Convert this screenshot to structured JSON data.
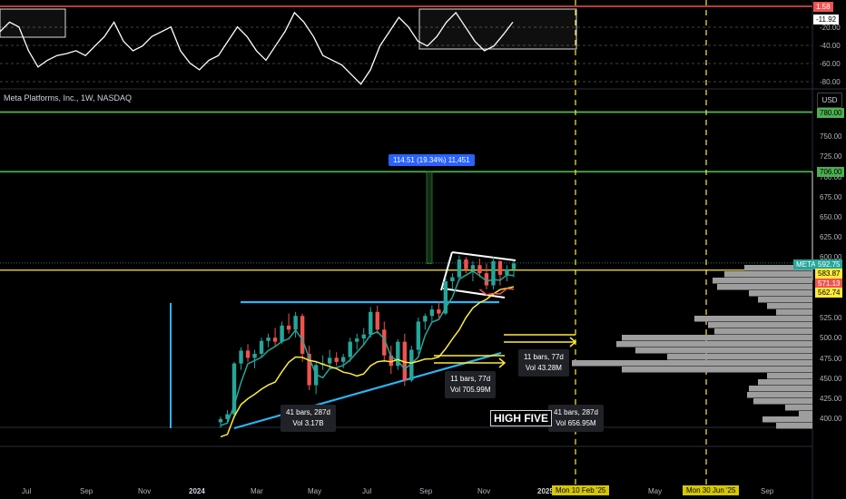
{
  "symbol_title": "Meta Platforms, Inc., 1W, NASDAQ",
  "currency_button": "USD",
  "oscillator": {
    "level_label": "1.58",
    "current_label": "-11.92",
    "ticks": [
      "-20.00",
      "-40.00",
      "-60.00",
      "-80.00"
    ],
    "values": [
      -25,
      -15,
      -20,
      -45,
      -62,
      -55,
      -50,
      -48,
      -45,
      -50,
      -40,
      -30,
      -15,
      -35,
      -45,
      -40,
      -30,
      -25,
      -20,
      -45,
      -58,
      -65,
      -55,
      -50,
      -35,
      -20,
      -30,
      -45,
      -55,
      -40,
      -25,
      -5,
      -15,
      -30,
      -50,
      -55,
      -60,
      -70,
      -80,
      -65,
      -40,
      -25,
      -10,
      -20,
      -35,
      -40,
      -30,
      -15,
      -5,
      -20,
      -35,
      -45,
      -40,
      -28,
      -15
    ]
  },
  "price_axis": {
    "ticks": [
      "750.00",
      "725.00",
      "700.00",
      "675.00",
      "650.00",
      "625.00",
      "600.00",
      "525.00",
      "500.00",
      "475.00",
      "450.00",
      "425.00",
      "400.00"
    ],
    "labels": {
      "target_high": "780.00",
      "target_mid": "706.00",
      "meta_tag": "META",
      "last_price": "592.75",
      "level_yellow": "583.87",
      "level_red": "571.13",
      "level_low": "562.74"
    }
  },
  "measure_label": "114.51 (19.34%) 11,451",
  "ranges": [
    {
      "line1": "41 bars, 287d",
      "line2": "Vol 3.17B"
    },
    {
      "line1": "11 bars, 77d",
      "line2": "Vol 705.99M"
    },
    {
      "line1": "11 bars, 77d",
      "line2": "Vol 43.28M"
    },
    {
      "line1": "41 bars, 287d",
      "line2": "Vol 656.95M"
    }
  ],
  "annotation_text": "HIGH FIVE",
  "time_axis": {
    "labels": [
      "Jul",
      "Sep",
      "Nov",
      "2024",
      "Mar",
      "May",
      "Jul",
      "Sep",
      "Nov",
      "2025",
      "May",
      "Sep"
    ],
    "highlight_1": "Mon 10 Feb '25",
    "highlight_2": "Mon 30 Jun '25"
  },
  "colors": {
    "up": "#26a69a",
    "down": "#ef5350",
    "ma_fast": "#26a69a",
    "ma_slow": "#ffeb3b",
    "trendline": "#29b6f6",
    "target_line": "#4caf50",
    "yellow_level": "#ffeb3b"
  },
  "chart_data": {
    "type": "candlestick",
    "title": "Meta Platforms, Inc., 1W, NASDAQ",
    "x_labels": [
      "2024",
      "Mar",
      "May",
      "Jul",
      "Sep",
      "Nov"
    ],
    "ohlc": [
      [
        395,
        402,
        388,
        399
      ],
      [
        399,
        410,
        394,
        405
      ],
      [
        405,
        470,
        400,
        468
      ],
      [
        468,
        488,
        460,
        484
      ],
      [
        484,
        492,
        470,
        475
      ],
      [
        475,
        485,
        462,
        480
      ],
      [
        480,
        500,
        475,
        496
      ],
      [
        496,
        505,
        488,
        500
      ],
      [
        500,
        512,
        490,
        495
      ],
      [
        495,
        520,
        492,
        515
      ],
      [
        515,
        530,
        505,
        510
      ],
      [
        510,
        532,
        500,
        527
      ],
      [
        527,
        530,
        470,
        480
      ],
      [
        480,
        490,
        435,
        441
      ],
      [
        441,
        470,
        430,
        466
      ],
      [
        466,
        478,
        460,
        468
      ],
      [
        468,
        485,
        462,
        475
      ],
      [
        475,
        482,
        465,
        470
      ],
      [
        470,
        480,
        462,
        476
      ],
      [
        476,
        500,
        470,
        495
      ],
      [
        495,
        505,
        485,
        499
      ],
      [
        499,
        512,
        490,
        504
      ],
      [
        504,
        538,
        500,
        532
      ],
      [
        532,
        540,
        505,
        510
      ],
      [
        510,
        520,
        470,
        478
      ],
      [
        478,
        490,
        455,
        465
      ],
      [
        465,
        498,
        460,
        495
      ],
      [
        495,
        505,
        440,
        447
      ],
      [
        447,
        490,
        445,
        485
      ],
      [
        485,
        525,
        480,
        520
      ],
      [
        520,
        530,
        510,
        527
      ],
      [
        527,
        540,
        520,
        535
      ],
      [
        535,
        545,
        525,
        530
      ],
      [
        530,
        575,
        528,
        570
      ],
      [
        570,
        580,
        560,
        575
      ],
      [
        575,
        602,
        570,
        597
      ],
      [
        597,
        600,
        580,
        585
      ],
      [
        585,
        595,
        570,
        590
      ],
      [
        590,
        598,
        575,
        580
      ],
      [
        580,
        592,
        560,
        565
      ],
      [
        565,
        600,
        560,
        595
      ],
      [
        595,
        596,
        565,
        578
      ],
      [
        578,
        590,
        570,
        585
      ],
      [
        585,
        595,
        575,
        592
      ]
    ],
    "price_levels": [
      780,
      706,
      583.87,
      571.13,
      562.74
    ],
    "last_price": 592.75
  }
}
